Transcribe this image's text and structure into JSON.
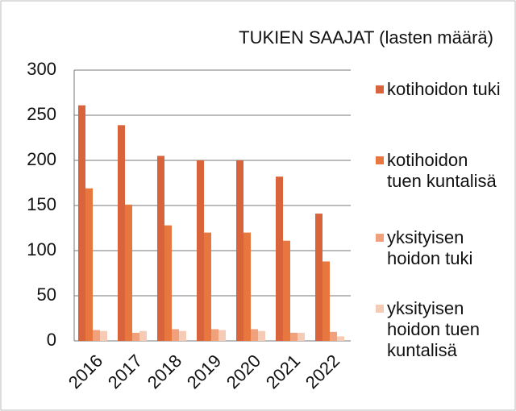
{
  "chart_data": {
    "type": "bar",
    "title": "TUKIEN SAAJAT (lasten määrä)",
    "categories": [
      "2016",
      "2017",
      "2018",
      "2019",
      "2020",
      "2021",
      "2022"
    ],
    "series": [
      {
        "name": "kotihoidon tuki",
        "color": "#d9633a",
        "values": [
          261,
          239,
          205,
          200,
          200,
          182,
          141
        ]
      },
      {
        "name": "kotihoidon tuen kuntalisä",
        "color": "#e8773f",
        "values": [
          169,
          151,
          128,
          120,
          120,
          111,
          88
        ]
      },
      {
        "name": "yksityisen hoidon tuki",
        "color": "#f0a07a",
        "values": [
          12,
          9,
          13,
          13,
          13,
          9,
          10
        ]
      },
      {
        "name": "yksityisen hoidon tuen kuntalisä",
        "color": "#f6cbb6",
        "values": [
          11,
          11,
          11,
          12,
          11,
          9,
          5
        ]
      }
    ],
    "ylim": [
      0,
      300
    ],
    "yticks": [
      0,
      50,
      100,
      150,
      200,
      250,
      300
    ],
    "grid": true
  }
}
